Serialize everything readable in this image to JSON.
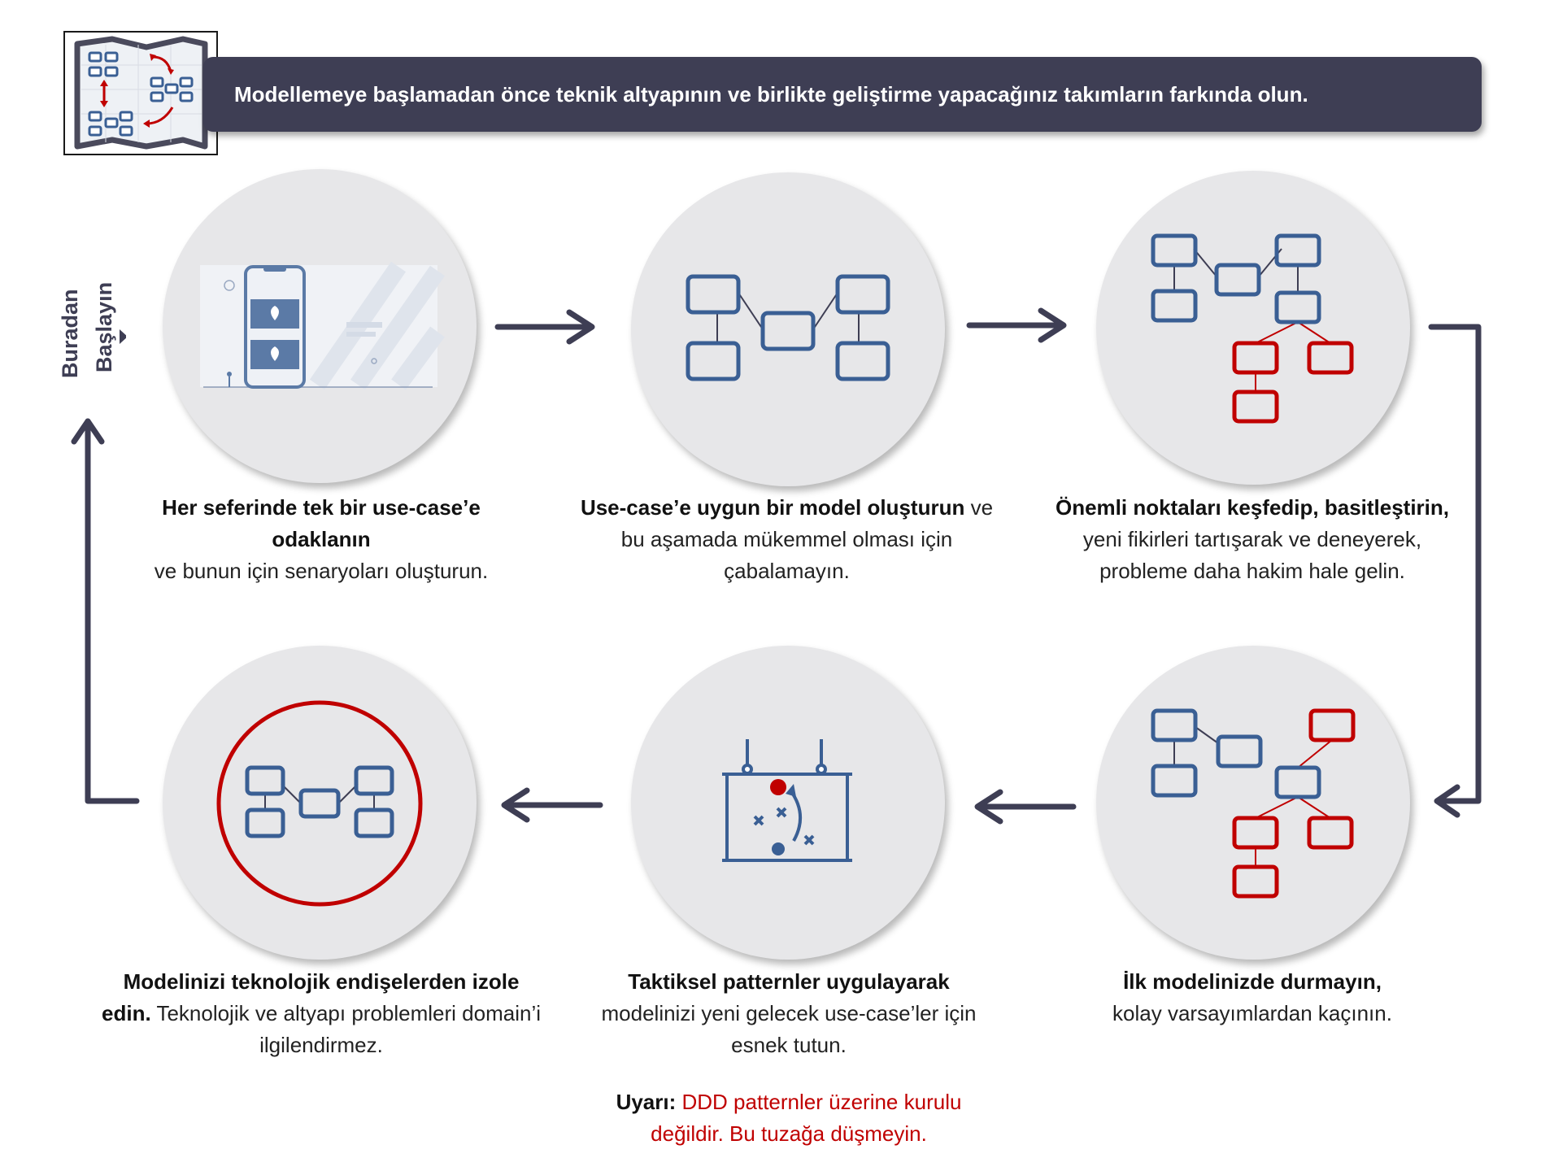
{
  "header": {
    "banner_text": "Modellemeye başlamadan önce teknik altyapının ve birlikte geliştirme yapacağınız takımların farkında olun."
  },
  "start_label": {
    "line1": "Buradan",
    "line2": "Başlayın"
  },
  "steps": [
    {
      "bold": "Her seferinde tek bir use-case’e odaklanın",
      "normal": "ve bunun için senaryoları oluşturun."
    },
    {
      "bold": "Use-case’e uygun bir model oluşturun",
      "normal": "ve bu aşamada mükemmel olması için çabalamayın."
    },
    {
      "bold": "Önemli noktaları keşfedip, basitleştirin,",
      "normal": "yeni fikirleri tartışarak ve deneyerek, probleme daha hakim hale gelin."
    },
    {
      "bold": "İlk modelinizde durmayın,",
      "normal": "kolay varsayımlardan kaçının."
    },
    {
      "bold": "Taktiksel patternler uygulayarak",
      "normal": "modelinizi yeni gelecek use-case’ler için esnek tutun."
    },
    {
      "bold": "Modelinizi teknolojik endişelerden izole edin.",
      "normal": "Teknolojik ve altyapı problemleri domain’i ilgilendirmez."
    }
  ],
  "warning": {
    "bold": "Uyarı:",
    "normal": "DDD patternler üzerine kurulu değildir. Bu tuzağa düşmeyin."
  },
  "colors": {
    "banner": "#3e3e54",
    "node_blue": "#3a5f94",
    "node_red": "#c00000",
    "arrow": "#3e3e54",
    "circle": "#e7e7e9"
  }
}
